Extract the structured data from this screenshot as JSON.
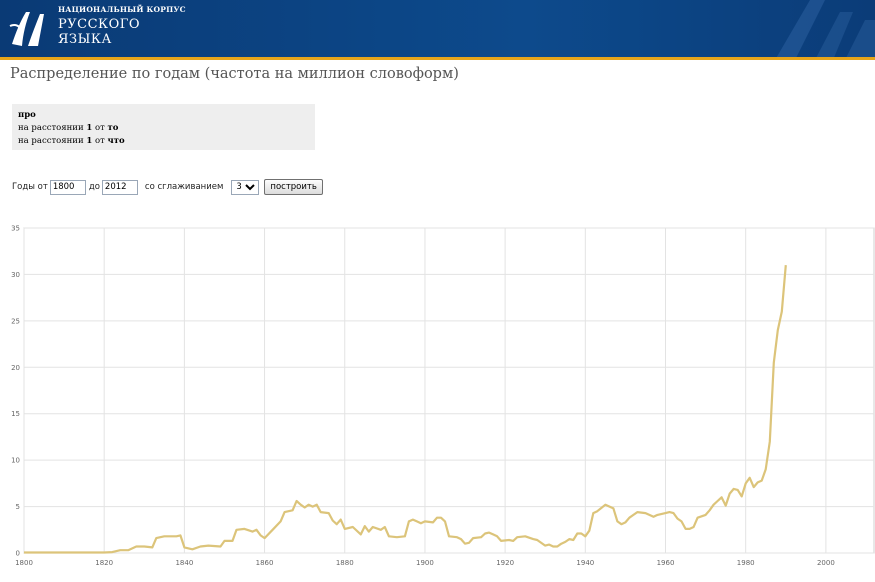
{
  "header": {
    "logo_line1": "НАЦИОНАЛЬНЫЙ КОРПУС",
    "logo_line2": "РУССКОГО",
    "logo_line3": "ЯЗЫКА"
  },
  "page_title": "Распределение по годам (частота на миллион словоформ)",
  "query": {
    "word": "про",
    "line2_prefix": "на расстоянии ",
    "line2_distance": "1",
    "line2_mid": " от ",
    "line2_word": "то",
    "line3_prefix": "на расстоянии ",
    "line3_distance": "1",
    "line3_mid": " от ",
    "line3_word": "что"
  },
  "form": {
    "years_from_label": "Годы от",
    "from_value": "1800",
    "to_label": "до",
    "to_value": "2012",
    "smoothing_label": "со сглаживанием",
    "smoothing_value": "3",
    "build_button": "построить"
  },
  "colors": {
    "series": "#dcc47a",
    "grid": "#e3e3e3",
    "header_bg": "#0d4a8c",
    "header_stripe": "#e7a51a"
  },
  "chart_data": {
    "type": "line",
    "xlim": [
      1800,
      2012
    ],
    "ylim": [
      0,
      35
    ],
    "x_ticks": [
      1800,
      1820,
      1840,
      1860,
      1880,
      1900,
      1920,
      1940,
      1960,
      1980,
      2000
    ],
    "y_ticks": [
      0,
      5,
      10,
      15,
      20,
      25,
      30,
      35
    ],
    "grid": true,
    "legend": "none",
    "series": [
      {
        "points": [
          [
            1800,
            0.05
          ],
          [
            1810,
            0.05
          ],
          [
            1820,
            0.05
          ],
          [
            1822,
            0.1
          ],
          [
            1824,
            0.3
          ],
          [
            1826,
            0.3
          ],
          [
            1828,
            0.7
          ],
          [
            1830,
            0.7
          ],
          [
            1832,
            0.6
          ],
          [
            1833,
            1.6
          ],
          [
            1835,
            1.8
          ],
          [
            1838,
            1.8
          ],
          [
            1839,
            1.9
          ],
          [
            1840,
            0.6
          ],
          [
            1842,
            0.4
          ],
          [
            1844,
            0.7
          ],
          [
            1846,
            0.8
          ],
          [
            1849,
            0.7
          ],
          [
            1850,
            1.3
          ],
          [
            1852,
            1.3
          ],
          [
            1853,
            2.5
          ],
          [
            1855,
            2.6
          ],
          [
            1857,
            2.3
          ],
          [
            1858,
            2.5
          ],
          [
            1859,
            1.9
          ],
          [
            1860,
            1.6
          ],
          [
            1862,
            2.5
          ],
          [
            1864,
            3.4
          ],
          [
            1865,
            4.4
          ],
          [
            1867,
            4.6
          ],
          [
            1868,
            5.6
          ],
          [
            1869,
            5.2
          ],
          [
            1870,
            4.9
          ],
          [
            1871,
            5.2
          ],
          [
            1872,
            5.0
          ],
          [
            1873,
            5.2
          ],
          [
            1874,
            4.4
          ],
          [
            1876,
            4.3
          ],
          [
            1877,
            3.5
          ],
          [
            1878,
            3.1
          ],
          [
            1879,
            3.6
          ],
          [
            1880,
            2.6
          ],
          [
            1882,
            2.8
          ],
          [
            1884,
            2.0
          ],
          [
            1885,
            2.9
          ],
          [
            1886,
            2.3
          ],
          [
            1887,
            2.8
          ],
          [
            1889,
            2.5
          ],
          [
            1890,
            2.8
          ],
          [
            1891,
            1.8
          ],
          [
            1893,
            1.7
          ],
          [
            1895,
            1.8
          ],
          [
            1896,
            3.4
          ],
          [
            1897,
            3.6
          ],
          [
            1898,
            3.4
          ],
          [
            1899,
            3.2
          ],
          [
            1900,
            3.4
          ],
          [
            1902,
            3.3
          ],
          [
            1903,
            3.8
          ],
          [
            1904,
            3.8
          ],
          [
            1905,
            3.4
          ],
          [
            1906,
            1.8
          ],
          [
            1908,
            1.7
          ],
          [
            1909,
            1.5
          ],
          [
            1910,
            1.0
          ],
          [
            1911,
            1.1
          ],
          [
            1912,
            1.6
          ],
          [
            1914,
            1.7
          ],
          [
            1915,
            2.1
          ],
          [
            1916,
            2.2
          ],
          [
            1917,
            2.0
          ],
          [
            1918,
            1.8
          ],
          [
            1919,
            1.3
          ],
          [
            1921,
            1.4
          ],
          [
            1922,
            1.3
          ],
          [
            1923,
            1.7
          ],
          [
            1925,
            1.8
          ],
          [
            1927,
            1.5
          ],
          [
            1928,
            1.4
          ],
          [
            1930,
            0.8
          ],
          [
            1931,
            0.9
          ],
          [
            1932,
            0.7
          ],
          [
            1933,
            0.7
          ],
          [
            1934,
            1.0
          ],
          [
            1935,
            1.2
          ],
          [
            1936,
            1.5
          ],
          [
            1937,
            1.4
          ],
          [
            1938,
            2.1
          ],
          [
            1939,
            2.1
          ],
          [
            1940,
            1.8
          ],
          [
            1941,
            2.4
          ],
          [
            1942,
            4.3
          ],
          [
            1943,
            4.5
          ],
          [
            1945,
            5.2
          ],
          [
            1947,
            4.8
          ],
          [
            1948,
            3.4
          ],
          [
            1949,
            3.1
          ],
          [
            1950,
            3.3
          ],
          [
            1951,
            3.8
          ],
          [
            1952,
            4.1
          ],
          [
            1953,
            4.4
          ],
          [
            1955,
            4.3
          ],
          [
            1957,
            3.9
          ],
          [
            1958,
            4.1
          ],
          [
            1960,
            4.3
          ],
          [
            1961,
            4.4
          ],
          [
            1962,
            4.3
          ],
          [
            1963,
            3.7
          ],
          [
            1964,
            3.4
          ],
          [
            1965,
            2.6
          ],
          [
            1966,
            2.6
          ],
          [
            1967,
            2.8
          ],
          [
            1968,
            3.8
          ],
          [
            1970,
            4.1
          ],
          [
            1971,
            4.6
          ],
          [
            1972,
            5.2
          ],
          [
            1973,
            5.6
          ],
          [
            1974,
            6.0
          ],
          [
            1975,
            5.1
          ],
          [
            1976,
            6.4
          ],
          [
            1977,
            6.9
          ],
          [
            1978,
            6.8
          ],
          [
            1979,
            6.1
          ],
          [
            1980,
            7.5
          ],
          [
            1981,
            8.1
          ],
          [
            1982,
            7.1
          ],
          [
            1983,
            7.6
          ],
          [
            1984,
            7.8
          ],
          [
            1985,
            9.0
          ],
          [
            1986,
            12.0
          ],
          [
            1987,
            20.5
          ],
          [
            1988,
            24.0
          ],
          [
            1989,
            26.0
          ],
          [
            1990,
            31.0
          ]
        ]
      }
    ]
  }
}
